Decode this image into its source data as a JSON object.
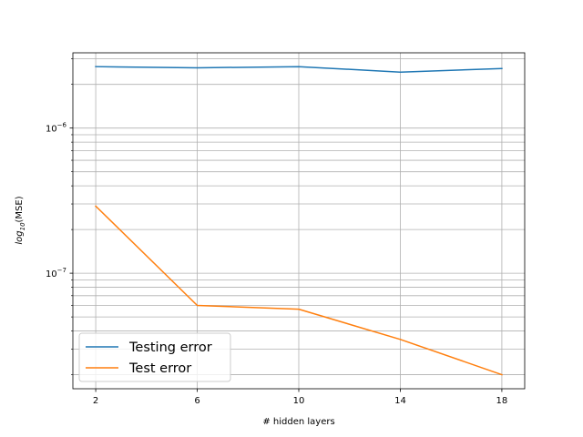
{
  "chart_data": {
    "type": "line",
    "title": "",
    "xlabel": "# hidden layers",
    "ylabel_base": "log",
    "ylabel_sub": "10",
    "ylabel_suffix": "(MSE)",
    "y_scale": "log",
    "x": [
      2,
      6,
      10,
      14,
      18
    ],
    "x_ticks": [
      "2",
      "6",
      "10",
      "14",
      "18"
    ],
    "xlim": [
      1.1,
      18.9
    ],
    "ylim": [
      1.6e-08,
      3.3e-06
    ],
    "y_major_ticks": [
      {
        "value": 1e-06,
        "base": "10",
        "exp": "−6"
      },
      {
        "value": 1e-07,
        "base": "10",
        "exp": "−7"
      }
    ],
    "grid": true,
    "grid_minor": true,
    "legend_position": "lower-left",
    "series": [
      {
        "name": "Testing error",
        "color": "#1f77b4",
        "values": [
          2.65e-06,
          2.6e-06,
          2.65e-06,
          2.43e-06,
          2.57e-06
        ]
      },
      {
        "name": "Test error",
        "color": "#ff7f0e",
        "values": [
          2.9e-07,
          6e-08,
          5.65e-08,
          3.5e-08,
          2e-08
        ]
      }
    ]
  }
}
